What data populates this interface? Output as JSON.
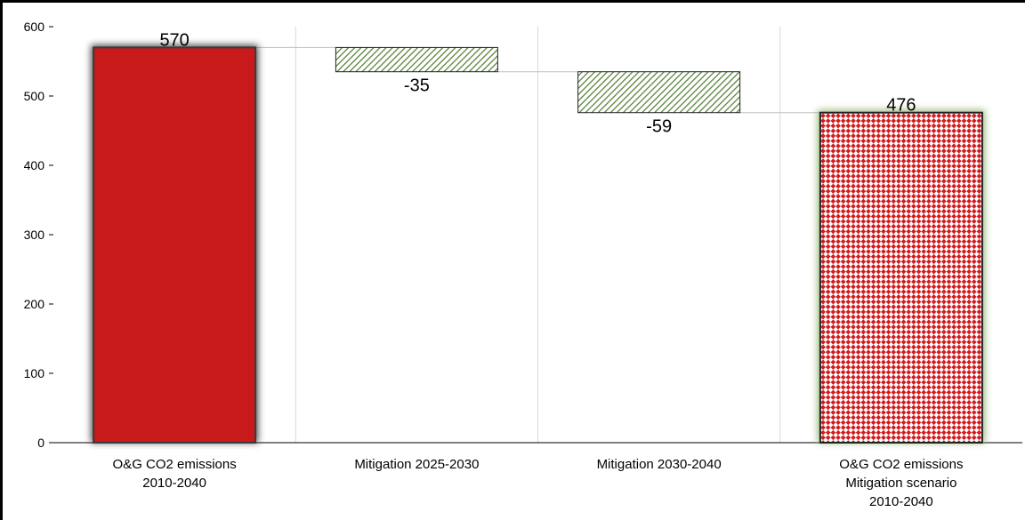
{
  "chart_data": {
    "type": "waterfall",
    "ylim": [
      0,
      600
    ],
    "yticks": [
      0,
      100,
      200,
      300,
      400,
      500,
      600
    ],
    "grid": "vertical category separators",
    "legend": "none",
    "categories": [
      [
        "O&G CO2 emissions",
        "2010-2040"
      ],
      [
        "Mitigation 2025-2030"
      ],
      [
        "Mitigation 2030-2040"
      ],
      [
        "O&G CO2 emissions",
        "Mitigation scenario",
        "2010-2040"
      ]
    ],
    "bars": [
      {
        "kind": "total",
        "start": 0,
        "end": 570,
        "label": "570"
      },
      {
        "kind": "decrease",
        "start": 570,
        "end": 535,
        "label": "-35"
      },
      {
        "kind": "decrease",
        "start": 535,
        "end": 476,
        "label": "-59"
      },
      {
        "kind": "total",
        "start": 0,
        "end": 476,
        "label": "476"
      }
    ],
    "colors": {
      "total": "#c8191b",
      "decrease_hatch": "#4f7a2e",
      "scenario_check": "#d01c1f",
      "connector": "#bfbfbf",
      "grid": "#d9d9d9"
    }
  }
}
